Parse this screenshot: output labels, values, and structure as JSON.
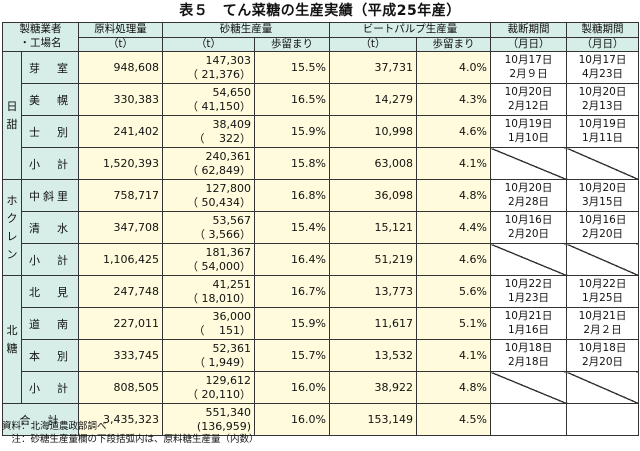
{
  "title": "表５　てん菜糖の生産実績（平成25年産）",
  "header": {
    "company": "製糖業者",
    "factory": "・工場名",
    "raw": "原料処理量",
    "raw_unit": "（t）",
    "sugar": "砂糖生産量",
    "sugar_unit": "（t）",
    "sugar_yield": "歩留まり",
    "pulp": "ビートパルプ生産量",
    "pulp_unit": "（t）",
    "pulp_yield": "歩留まり",
    "cut": "裁断期間",
    "cut_unit": "（月日）",
    "mill": "製糖期間",
    "mill_unit": "（月日）"
  },
  "groups": [
    {
      "name": "日甜",
      "chars": [
        "日",
        "甜"
      ]
    },
    {
      "name": "ホクレン",
      "chars": [
        "ホ",
        "ク",
        "レ",
        "ン"
      ]
    },
    {
      "name": "北糖",
      "chars": [
        "北",
        "糖"
      ]
    }
  ],
  "rows": [
    {
      "factory": "芽　室",
      "raw": "948,608",
      "sugar": "147,303",
      "sugar_sub": "（ 21,376）",
      "sugar_yield": "15.5%",
      "pulp": "37,731",
      "pulp_yield": "4.0%",
      "cut_start": "10月17日",
      "cut_end": "2月９日",
      "mill_start": "10月17日",
      "mill_end": "4月23日"
    },
    {
      "factory": "美　幌",
      "raw": "330,383",
      "sugar": "54,650",
      "sugar_sub": "（ 41,150）",
      "sugar_yield": "16.5%",
      "pulp": "14,279",
      "pulp_yield": "4.3%",
      "cut_start": "10月20日",
      "cut_end": "2月12日",
      "mill_start": "10月20日",
      "mill_end": "2月13日"
    },
    {
      "factory": "士　別",
      "raw": "241,402",
      "sugar": "38,409",
      "sugar_sub": "（　 322）",
      "sugar_yield": "15.9%",
      "pulp": "10,998",
      "pulp_yield": "4.6%",
      "cut_start": "10月19日",
      "cut_end": "1月10日",
      "mill_start": "10月19日",
      "mill_end": "1月11日"
    },
    {
      "factory": "小　計",
      "raw": "1,520,393",
      "sugar": "240,361",
      "sugar_sub": "（ 62,849）",
      "sugar_yield": "15.8%",
      "pulp": "63,008",
      "pulp_yield": "4.1%",
      "cut_start": "",
      "cut_end": "",
      "mill_start": "",
      "mill_end": ""
    },
    {
      "factory": "中斜里",
      "raw": "758,717",
      "sugar": "127,800",
      "sugar_sub": "（ 50,434）",
      "sugar_yield": "16.8%",
      "pulp": "36,098",
      "pulp_yield": "4.8%",
      "cut_start": "10月20日",
      "cut_end": "2月28日",
      "mill_start": "10月20日",
      "mill_end": "3月15日"
    },
    {
      "factory": "清　水",
      "raw": "347,708",
      "sugar": "53,567",
      "sugar_sub": "（ 3,566）",
      "sugar_yield": "15.4%",
      "pulp": "15,121",
      "pulp_yield": "4.4%",
      "cut_start": "10月16日",
      "cut_end": "2月20日",
      "mill_start": "10月16日",
      "mill_end": "2月20日"
    },
    {
      "factory": "小　計",
      "raw": "1,106,425",
      "sugar": "181,367",
      "sugar_sub": "（ 54,000）",
      "sugar_yield": "16.4%",
      "pulp": "51,219",
      "pulp_yield": "4.6%",
      "cut_start": "",
      "cut_end": "",
      "mill_start": "",
      "mill_end": ""
    },
    {
      "factory": "北　見",
      "raw": "247,748",
      "sugar": "41,251",
      "sugar_sub": "（ 18,010）",
      "sugar_yield": "16.7%",
      "pulp": "13,773",
      "pulp_yield": "5.6%",
      "cut_start": "10月22日",
      "cut_end": "1月23日",
      "mill_start": "10月22日",
      "mill_end": "1月25日"
    },
    {
      "factory": "道　南",
      "raw": "227,011",
      "sugar": "36,000",
      "sugar_sub": "（　 151）",
      "sugar_yield": "15.9%",
      "pulp": "11,617",
      "pulp_yield": "5.1%",
      "cut_start": "10月21日",
      "cut_end": "1月16日",
      "mill_start": "10月21日",
      "mill_end": "2月２日"
    },
    {
      "factory": "本　別",
      "raw": "333,745",
      "sugar": "52,361",
      "sugar_sub": "（ 1,949）",
      "sugar_yield": "15.7%",
      "pulp": "13,532",
      "pulp_yield": "4.1%",
      "cut_start": "10月18日",
      "cut_end": "2月18日",
      "mill_start": "10月18日",
      "mill_end": "2月20日"
    },
    {
      "factory": "小　計",
      "raw": "808,505",
      "sugar": "129,612",
      "sugar_sub": "（ 20,110）",
      "sugar_yield": "16.0%",
      "pulp": "38,922",
      "pulp_yield": "4.8%",
      "cut_start": "",
      "cut_end": "",
      "mill_start": "",
      "mill_end": ""
    }
  ],
  "total": {
    "label": "合　計",
    "raw": "3,435,323",
    "sugar": "551,340",
    "sugar_sub": "(136,959)",
    "sugar_yield": "16.0%",
    "pulp": "153,149",
    "pulp_yield": "4.5%"
  },
  "notes": [
    "資料：北海道農政部調べ",
    "　注：砂糖生産量欄の下段括弧内は、原料糖生産量（内数）"
  ]
}
